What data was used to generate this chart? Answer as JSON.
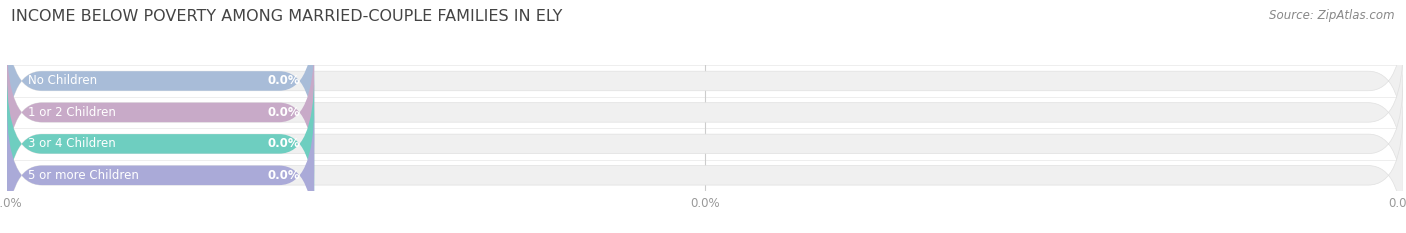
{
  "title": "INCOME BELOW POVERTY AMONG MARRIED-COUPLE FAMILIES IN ELY",
  "source": "Source: ZipAtlas.com",
  "categories": [
    "No Children",
    "1 or 2 Children",
    "3 or 4 Children",
    "5 or more Children"
  ],
  "values": [
    0.0,
    0.0,
    0.0,
    0.0
  ],
  "bar_colors": [
    "#a8bcd8",
    "#c8aac8",
    "#6ecec0",
    "#aaaad8"
  ],
  "bar_bg_color": "#f0f0f0",
  "bar_bg_edge_color": "#e0e0e0",
  "background_color": "#ffffff",
  "xlim_max": 100.0,
  "colored_portion_pct": 22.0,
  "title_fontsize": 11.5,
  "label_fontsize": 8.5,
  "value_fontsize": 8.5,
  "source_fontsize": 8.5,
  "bar_height": 0.62,
  "text_color_dark": "#555555",
  "text_color_light": "#ffffff",
  "axis_color": "#cccccc",
  "tick_color": "#999999"
}
